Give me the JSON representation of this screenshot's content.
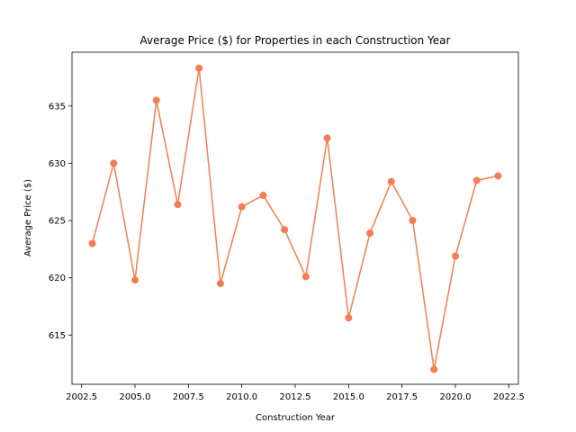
{
  "chart_data": {
    "type": "line",
    "title": "Average Price ($) for Properties in each Construction Year",
    "xlabel": "Construction Year",
    "ylabel": "Average Price ($)",
    "xlim": [
      2002.05,
      2022.95
    ],
    "ylim": [
      610.7,
      639.7
    ],
    "xticks": [
      2002.5,
      2005.0,
      2007.5,
      2010.0,
      2012.5,
      2015.0,
      2017.5,
      2020.0,
      2022.5
    ],
    "xtick_labels": [
      "2002.5",
      "2005.0",
      "2007.5",
      "2010.0",
      "2012.5",
      "2015.0",
      "2017.5",
      "2020.0",
      "2022.5"
    ],
    "yticks": [
      615,
      620,
      625,
      630,
      635
    ],
    "ytick_labels": [
      "615",
      "620",
      "625",
      "630",
      "635"
    ],
    "grid": false,
    "series": [
      {
        "color": "#f47e52",
        "marker": "circle",
        "x": [
          2003,
          2004,
          2005,
          2006,
          2007,
          2008,
          2009,
          2010,
          2011,
          2012,
          2013,
          2014,
          2015,
          2016,
          2017,
          2018,
          2019,
          2020,
          2021,
          2022
        ],
        "y": [
          623.0,
          630.0,
          619.8,
          635.5,
          626.4,
          638.3,
          619.5,
          626.2,
          627.2,
          624.2,
          620.1,
          632.2,
          616.5,
          623.9,
          628.4,
          625.0,
          612.0,
          621.9,
          628.5,
          628.9
        ]
      }
    ]
  }
}
